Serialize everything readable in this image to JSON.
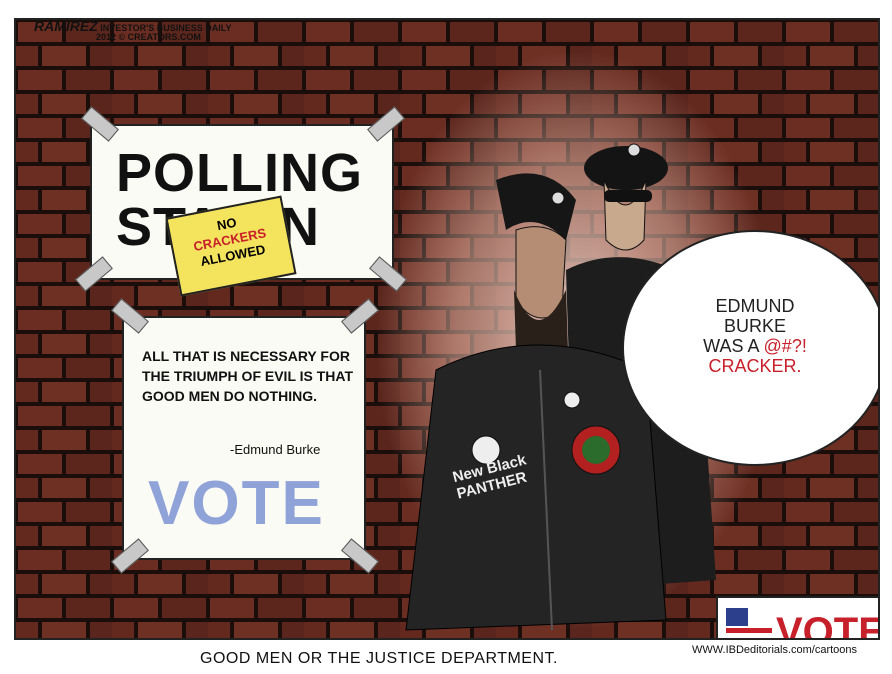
{
  "signature": {
    "name": "RAMIREZ",
    "line1": "INVESTOR'S BUSINESS DAILY",
    "line2": "2012 © CREATORS.COM"
  },
  "polling_sign": {
    "line1": "POLLING",
    "line2": "STA  ON"
  },
  "note": {
    "line1": "NO",
    "line2": "CRACKERS",
    "line3": "ALLOWED"
  },
  "burke_sign": {
    "quote": "ALL THAT IS NECESSARY FOR THE TRIUMPH OF EVIL IS THAT GOOD MEN DO NOTHING.",
    "attribution": "-Edmund Burke",
    "vote": "VOTE"
  },
  "jacket": {
    "line1": "New Black",
    "line2": "PANTHER"
  },
  "speech_bubble": {
    "line1": "EDMUND",
    "line2": "BURKE",
    "line3_prefix": "WAS A ",
    "line3_expletive": "@#?!",
    "line4": "CRACKER."
  },
  "vote_badge": {
    "label": "VOTE"
  },
  "caption": "GOOD MEN OR THE JUSTICE DEPARTMENT.",
  "url": "WWW.IBDeditorials.com/cartoons",
  "colors": {
    "brick": "#6b2d22",
    "mortar": "#1a0d0a",
    "vote_blue": "#8fa3d9",
    "vote_red": "#c8202a",
    "note_yellow": "#f4e35c"
  }
}
